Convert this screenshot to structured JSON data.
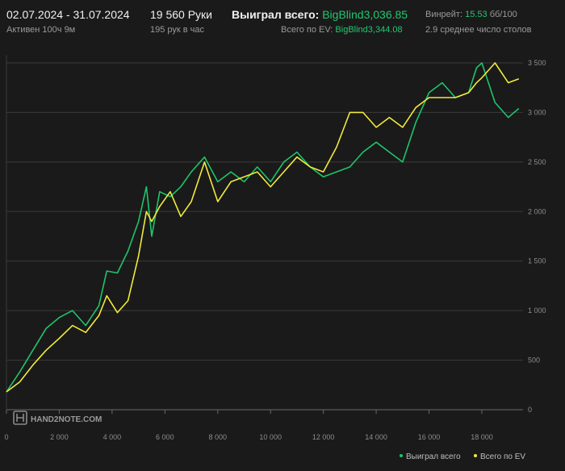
{
  "header": {
    "date_range": "02.07.2024 - 31.07.2024",
    "active_time": "Активен 100ч 9м",
    "hands": "19 560 Руки",
    "hands_per_hour": "195 рук в час",
    "won_total_label": "Выиграл всего:",
    "won_total_value": "BigBlind3,036.85",
    "ev_total_label": "Всего по EV:",
    "ev_total_value": "BigBlind3,344.08",
    "winrate_label": "Винрейт:",
    "winrate_value": "15.53",
    "winrate_unit": "бб/100",
    "avg_tables": "2.9 среднее число столов"
  },
  "watermark": "HAND2NOTE.COM",
  "colors": {
    "won": "#1fc46a",
    "ev": "#f0ea3c",
    "background": "#1a1a1a",
    "grid": "#3a3a3a"
  },
  "chart_data": {
    "type": "line",
    "xlabel": "",
    "ylabel": "",
    "xlim": [
      0,
      19560
    ],
    "ylim": [
      0,
      3500
    ],
    "x_ticks": [
      "0",
      "2 000",
      "4 000",
      "6 000",
      "8 000",
      "10 000",
      "12 000",
      "14 000",
      "16 000",
      "18 000"
    ],
    "x_tick_values": [
      0,
      2000,
      4000,
      6000,
      8000,
      10000,
      12000,
      14000,
      16000,
      18000
    ],
    "y_ticks": [
      "0",
      "500",
      "1 000",
      "1 500",
      "2 000",
      "2 500",
      "3 000",
      "3 500"
    ],
    "y_tick_values": [
      0,
      500,
      1000,
      1500,
      2000,
      2500,
      3000,
      3500
    ],
    "grid": true,
    "legend_position": "bottom-right",
    "x": [
      0,
      500,
      1000,
      1500,
      2000,
      2500,
      3000,
      3500,
      3800,
      4200,
      4600,
      5000,
      5300,
      5500,
      5800,
      6200,
      6600,
      7000,
      7500,
      8000,
      8500,
      9000,
      9500,
      10000,
      10500,
      11000,
      11500,
      12000,
      12500,
      13000,
      13500,
      14000,
      14500,
      15000,
      15500,
      16000,
      16500,
      17000,
      17500,
      17800,
      18000,
      18500,
      19000,
      19400
    ],
    "series": [
      {
        "name": "Выиграл всего",
        "values": [
          180,
          380,
          600,
          820,
          930,
          1000,
          850,
          1050,
          1400,
          1380,
          1600,
          1900,
          2250,
          1750,
          2200,
          2150,
          2250,
          2400,
          2550,
          2300,
          2400,
          2300,
          2450,
          2300,
          2500,
          2600,
          2450,
          2350,
          2400,
          2450,
          2600,
          2700,
          2600,
          2500,
          2900,
          3200,
          3300,
          3150,
          3200,
          3450,
          3500,
          3100,
          2950,
          3040
        ]
      },
      {
        "name": "Всего по EV",
        "values": [
          180,
          280,
          450,
          600,
          720,
          850,
          780,
          950,
          1150,
          980,
          1100,
          1550,
          2000,
          1900,
          2050,
          2200,
          1950,
          2100,
          2500,
          2100,
          2300,
          2350,
          2400,
          2250,
          2400,
          2550,
          2450,
          2400,
          2650,
          3000,
          3000,
          2850,
          2950,
          2850,
          3050,
          3150,
          3150,
          3150,
          3200,
          3300,
          3350,
          3500,
          3300,
          3340
        ]
      }
    ]
  },
  "legend": {
    "won": "Выиграл всего",
    "ev": "Всего по EV"
  }
}
